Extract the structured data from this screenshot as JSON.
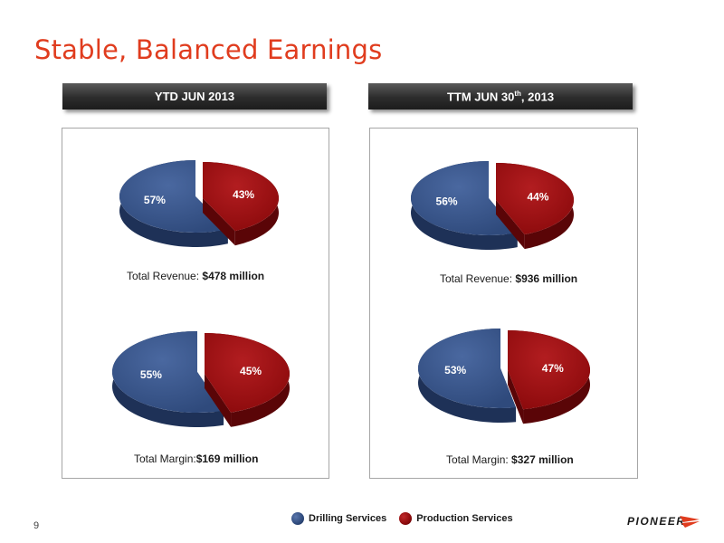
{
  "title": "Stable, Balanced Earnings",
  "headers": {
    "left": "YTD JUN 2013",
    "right_prefix": "TTM JUN 30",
    "right_sup": "th",
    "right_suffix": ", 2013"
  },
  "captions": {
    "ytd_revenue_label": "Total Revenue:",
    "ytd_revenue_value": "$478 million",
    "ytd_margin_label": "Total Margin:",
    "ytd_margin_value": "$169 million",
    "ttm_revenue_label": "Total Revenue:",
    "ttm_revenue_value": "$936 million",
    "ttm_margin_label": "Total Margin:",
    "ttm_margin_value": "$327 million"
  },
  "legend": {
    "drilling": "Drilling Services",
    "production": "Production Services"
  },
  "colors": {
    "drilling": "#2f4a7c",
    "production": "#8c0a0c",
    "title": "#e03c1e"
  },
  "footer": {
    "page_number": "9",
    "logo": "PIONEER"
  },
  "chart_data": [
    {
      "type": "pie",
      "categories": [
        "Drilling Services",
        "Production Services"
      ],
      "values": [
        57,
        43
      ],
      "labels": [
        "57%",
        "43%"
      ]
    },
    {
      "type": "pie",
      "categories": [
        "Drilling Services",
        "Production Services"
      ],
      "values": [
        55,
        45
      ],
      "labels": [
        "55%",
        "45%"
      ]
    },
    {
      "type": "pie",
      "categories": [
        "Drilling Services",
        "Production Services"
      ],
      "values": [
        56,
        44
      ],
      "labels": [
        "56%",
        "44%"
      ]
    },
    {
      "type": "pie",
      "categories": [
        "Drilling Services",
        "Production Services"
      ],
      "values": [
        53,
        47
      ],
      "labels": [
        "53%",
        "47%"
      ]
    }
  ]
}
